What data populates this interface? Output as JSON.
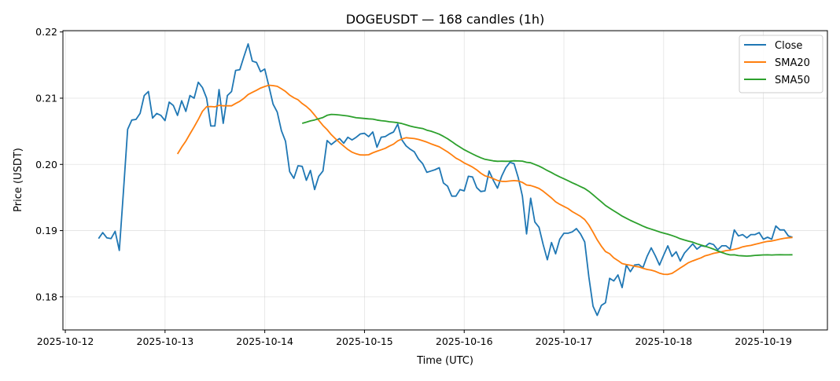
{
  "chart_data": {
    "type": "line",
    "title": "DOGEUSDT — 168 candles (1h)",
    "xlabel": "Time (UTC)",
    "ylabel": "Price (USDT)",
    "x_start": "2025-10-12 08:00",
    "x_step_hours": 1,
    "x_ticks": [
      "2025-10-12",
      "2025-10-13",
      "2025-10-14",
      "2025-10-15",
      "2025-10-16",
      "2025-10-17",
      "2025-10-18",
      "2025-10-19"
    ],
    "y_ticks": [
      "0.18",
      "0.19",
      "0.20",
      "0.21",
      "0.22"
    ],
    "y_tick_values": [
      0.18,
      0.19,
      0.2,
      0.21,
      0.22
    ],
    "ylim": [
      0.175,
      0.2202
    ],
    "xlim_days": [
      -0.024,
      7.642
    ],
    "grid": true,
    "legend_position": "top-right",
    "series": [
      {
        "name": "Close",
        "color": "#1f77b4",
        "values": [
          0.1888,
          0.1897,
          0.1889,
          0.1888,
          0.1899,
          0.187,
          0.196,
          0.2053,
          0.2067,
          0.2068,
          0.2077,
          0.2104,
          0.211,
          0.207,
          0.2077,
          0.2074,
          0.2066,
          0.2094,
          0.2089,
          0.2074,
          0.2096,
          0.208,
          0.2104,
          0.21,
          0.2124,
          0.2116,
          0.21,
          0.2058,
          0.2058,
          0.2113,
          0.2062,
          0.2104,
          0.211,
          0.2142,
          0.2143,
          0.2163,
          0.2182,
          0.2156,
          0.2154,
          0.214,
          0.2144,
          0.2118,
          0.2091,
          0.2079,
          0.2051,
          0.2035,
          0.1989,
          0.1979,
          0.1998,
          0.1997,
          0.1976,
          0.1991,
          0.1962,
          0.1982,
          0.199,
          0.2036,
          0.203,
          0.2035,
          0.2039,
          0.2032,
          0.2041,
          0.2037,
          0.2041,
          0.2046,
          0.2047,
          0.2042,
          0.2049,
          0.2026,
          0.2041,
          0.2042,
          0.2046,
          0.2049,
          0.2061,
          0.2037,
          0.2028,
          0.2023,
          0.2019,
          0.2008,
          0.2001,
          0.1988,
          0.199,
          0.1992,
          0.1995,
          0.1972,
          0.1967,
          0.1952,
          0.1952,
          0.1962,
          0.196,
          0.1982,
          0.1981,
          0.1965,
          0.1959,
          0.196,
          0.199,
          0.1976,
          0.1964,
          0.1982,
          0.1995,
          0.2003,
          0.2001,
          0.198,
          0.1952,
          0.1895,
          0.1949,
          0.1913,
          0.1905,
          0.1879,
          0.1856,
          0.1882,
          0.1865,
          0.1887,
          0.1896,
          0.1896,
          0.1898,
          0.1903,
          0.1895,
          0.1883,
          0.183,
          0.1786,
          0.1772,
          0.1787,
          0.1791,
          0.1828,
          0.1824,
          0.1833,
          0.1814,
          0.1848,
          0.1838,
          0.1848,
          0.1849,
          0.1844,
          0.1861,
          0.1874,
          0.1862,
          0.1848,
          0.1863,
          0.1877,
          0.1861,
          0.1868,
          0.1854,
          0.1866,
          0.1873,
          0.188,
          0.1872,
          0.1877,
          0.1876,
          0.1881,
          0.1879,
          0.1871,
          0.1877,
          0.1877,
          0.1872,
          0.1901,
          0.1892,
          0.1894,
          0.1889,
          0.1894,
          0.1894,
          0.1897,
          0.1887,
          0.189,
          0.1887,
          0.1907,
          0.1901,
          0.1901,
          0.1892,
          0.189
        ]
      },
      {
        "name": "SMA20",
        "color": "#ff7f0e",
        "window": 20,
        "source": "Close"
      },
      {
        "name": "SMA50",
        "color": "#2ca02c",
        "window": 50,
        "source": "Close"
      }
    ]
  }
}
